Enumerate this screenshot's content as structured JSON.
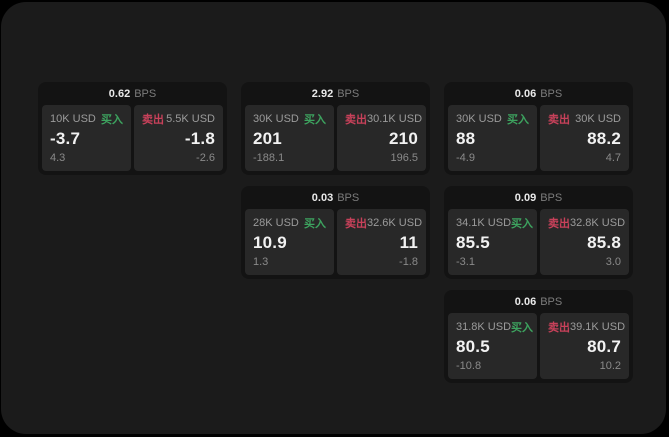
{
  "colors": {
    "buy_green": "#3da35f",
    "sell_red": "#c8415a",
    "panel_bg": "#1b1b1b",
    "card_bg": "#131313",
    "tile_bg": "#282828"
  },
  "cards": [
    {
      "bps_value": "0.62",
      "bps_unit": "BPS",
      "buy": {
        "amount": "10K USD",
        "tag": "买入",
        "price": "-3.7",
        "delta": "4.3"
      },
      "sell": {
        "tag": "卖出",
        "amount": "5.5K USD",
        "price": "-1.8",
        "delta": "-2.6"
      }
    },
    {
      "bps_value": "2.92",
      "bps_unit": "BPS",
      "buy": {
        "amount": "30K USD",
        "tag": "买入",
        "price": "201",
        "delta": "-188.1"
      },
      "sell": {
        "tag": "卖出",
        "amount": "30.1K USD",
        "price": "210",
        "delta": "196.5"
      }
    },
    {
      "bps_value": "0.06",
      "bps_unit": "BPS",
      "buy": {
        "amount": "30K USD",
        "tag": "买入",
        "price": "88",
        "delta": "-4.9"
      },
      "sell": {
        "tag": "卖出",
        "amount": "30K USD",
        "price": "88.2",
        "delta": "4.7"
      }
    },
    {
      "bps_value": "0.03",
      "bps_unit": "BPS",
      "buy": {
        "amount": "28K USD",
        "tag": "买入",
        "price": "10.9",
        "delta": "1.3"
      },
      "sell": {
        "tag": "卖出",
        "amount": "32.6K USD",
        "price": "11",
        "delta": "-1.8"
      }
    },
    {
      "bps_value": "0.09",
      "bps_unit": "BPS",
      "buy": {
        "amount": "34.1K USD",
        "tag": "买入",
        "price": "85.5",
        "delta": "-3.1"
      },
      "sell": {
        "tag": "卖出",
        "amount": "32.8K USD",
        "price": "85.8",
        "delta": "3.0"
      }
    },
    {
      "bps_value": "0.06",
      "bps_unit": "BPS",
      "buy": {
        "amount": "31.8K USD",
        "tag": "买入",
        "price": "80.5",
        "delta": "-10.8"
      },
      "sell": {
        "tag": "卖出",
        "amount": "39.1K USD",
        "price": "80.7",
        "delta": "10.2"
      }
    }
  ]
}
